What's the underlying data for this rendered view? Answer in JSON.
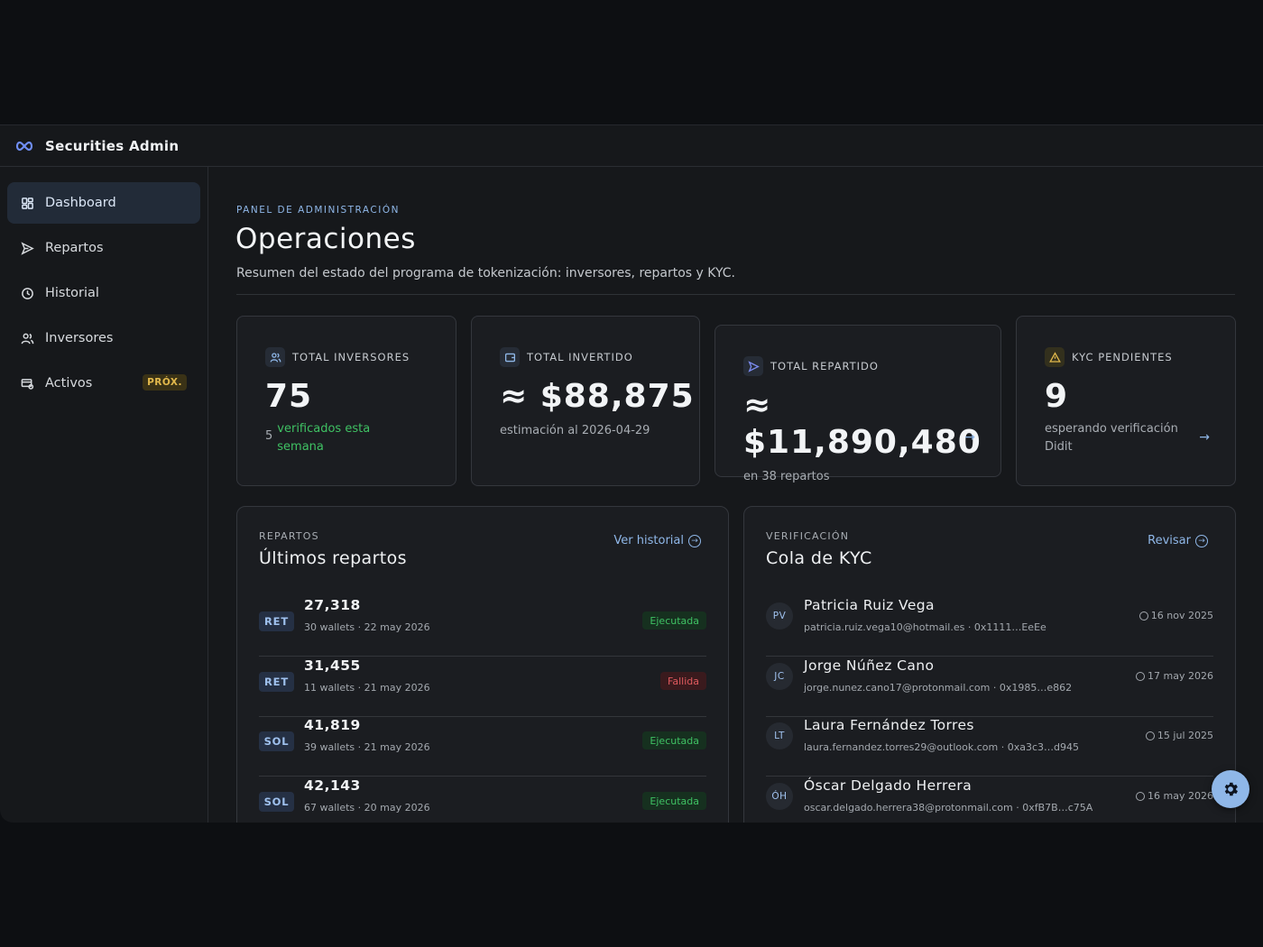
{
  "app": {
    "title": "Securities Admin"
  },
  "sidebar": {
    "items": [
      {
        "label": "Dashboard",
        "icon": "grid-icon",
        "active": true
      },
      {
        "label": "Repartos",
        "icon": "send-icon"
      },
      {
        "label": "Historial",
        "icon": "clock-icon"
      },
      {
        "label": "Inversores",
        "icon": "users-icon"
      },
      {
        "label": "Activos",
        "icon": "assets-icon",
        "badge": "PRÓX."
      }
    ]
  },
  "header": {
    "eyebrow": "PANEL DE ADMINISTRACIÓN",
    "title": "Operaciones",
    "subtitle": "Resumen del estado del programa de tokenización: inversores, repartos y KYC."
  },
  "stats": {
    "investors": {
      "label": "TOTAL INVERSORES",
      "value": "75",
      "note_count": "5",
      "note_text": "verificados esta semana"
    },
    "invested": {
      "label": "TOTAL INVERTIDO",
      "value": "≈ $88,875",
      "note": "estimación al 2026-04-29"
    },
    "distributed": {
      "label": "TOTAL REPARTIDO",
      "value": "≈ $11,890,480",
      "note": "en 38 repartos"
    },
    "kyc": {
      "label": "KYC PENDIENTES",
      "value": "9",
      "note": "esperando verificación Didit"
    }
  },
  "distributions": {
    "eyebrow": "REPARTOS",
    "title": "Últimos repartos",
    "link": "Ver historial",
    "rows": [
      {
        "tag": "RET",
        "amount": "27,318",
        "meta": "30 wallets · 22 may 2026",
        "status": "Ejecutada",
        "ok": true
      },
      {
        "tag": "RET",
        "amount": "31,455",
        "meta": "11 wallets · 21 may 2026",
        "status": "Fallida",
        "ok": false
      },
      {
        "tag": "SOL",
        "amount": "41,819",
        "meta": "39 wallets · 21 may 2026",
        "status": "Ejecutada",
        "ok": true
      },
      {
        "tag": "SOL",
        "amount": "42,143",
        "meta": "67 wallets · 20 may 2026",
        "status": "Ejecutada",
        "ok": true
      }
    ]
  },
  "kyc_queue": {
    "eyebrow": "VERIFICACIÓN",
    "title": "Cola de KYC",
    "link": "Revisar",
    "rows": [
      {
        "initials": "PV",
        "name": "Patricia Ruiz Vega",
        "meta": "patricia.ruiz.vega10@hotmail.es · 0x1111…EeEe",
        "date": "16 nov 2025"
      },
      {
        "initials": "JC",
        "name": "Jorge Núñez Cano",
        "meta": "jorge.nunez.cano17@protonmail.com · 0x1985…e862",
        "date": "17 may 2026"
      },
      {
        "initials": "LT",
        "name": "Laura Fernández Torres",
        "meta": "laura.fernandez.torres29@outlook.com · 0xa3c3…d945",
        "date": "15 jul 2025"
      },
      {
        "initials": "ÓH",
        "name": "Óscar Delgado Herrera",
        "meta": "oscar.delgado.herrera38@protonmail.com · 0xfB7B…c75A",
        "date": "16 may 2026"
      }
    ]
  },
  "colors": {
    "accent": "#8fb7e8",
    "success": "#3fc163",
    "danger": "#e05a5e",
    "warning": "#e2b94c"
  },
  "fab": {
    "icon": "gear-icon"
  }
}
